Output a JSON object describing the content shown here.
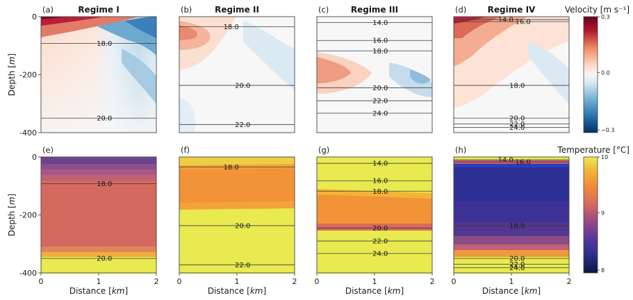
{
  "chart_data": {
    "type": "heatmap",
    "figure": {
      "titles": [
        "Regime I",
        "Regime II",
        "Regime III",
        "Regime IV"
      ],
      "xlabel": "Distance [km]",
      "ylabel": "Depth [m]",
      "xticks": [
        "0",
        "1",
        "2"
      ],
      "yticks": [
        "0",
        "-200",
        "-400"
      ],
      "xlim": [
        0,
        2
      ],
      "ylim": [
        -400,
        0
      ]
    },
    "colorbars": [
      {
        "name": "velocity",
        "label": "Velocity [m s⁻¹]",
        "min": -0.3,
        "max": 0.3,
        "ticks": [
          "0.3",
          "0.0",
          "−0.3"
        ],
        "colormap": "RdBu_r"
      },
      {
        "name": "temperature",
        "label": "Temperature [°C]",
        "min": 8,
        "max": 10,
        "ticks": [
          "10",
          "9",
          "8"
        ],
        "colormap": "CMRmap"
      }
    ],
    "panels": [
      {
        "id": "(a)",
        "row": "velocity",
        "regime": "Regime I",
        "contours": [
          {
            "label": "18.0",
            "depth": -92,
            "label_x": 1.1
          },
          {
            "label": "20.0",
            "depth": -350,
            "label_x": 1.1
          }
        ]
      },
      {
        "id": "(b)",
        "row": "velocity",
        "regime": "Regime II",
        "contours": [
          {
            "label": "18.0",
            "depth": -35,
            "label_x": 0.9
          },
          {
            "label": "20.0",
            "depth": -237,
            "label_x": 1.1
          },
          {
            "label": "22.0",
            "depth": -372,
            "label_x": 1.1
          }
        ]
      },
      {
        "id": "(c)",
        "row": "velocity",
        "regime": "Regime III",
        "contours": [
          {
            "label": "14.0",
            "depth": -20,
            "label_x": 1.1
          },
          {
            "label": "16.0",
            "depth": -82,
            "label_x": 1.1
          },
          {
            "label": "18.0",
            "depth": -118,
            "label_x": 1.1
          },
          {
            "label": "20.0",
            "depth": -245,
            "label_x": 1.1
          },
          {
            "label": "22.0",
            "depth": -290,
            "label_x": 1.1
          },
          {
            "label": "24.0",
            "depth": -333,
            "label_x": 1.1
          }
        ]
      },
      {
        "id": "(d)",
        "row": "velocity",
        "regime": "Regime IV",
        "contours": [
          {
            "label": "14.0",
            "depth": -10,
            "label_x": 0.9
          },
          {
            "label": "16.0",
            "depth": -17,
            "label_x": 1.2
          },
          {
            "label": "18.0",
            "depth": -237,
            "label_x": 1.1
          },
          {
            "label": "20.0",
            "depth": -350,
            "label_x": 1.1
          },
          {
            "label": "22.0",
            "depth": -370,
            "label_x": 1.1
          },
          {
            "label": "24.0",
            "depth": -382,
            "label_x": 1.1
          }
        ]
      },
      {
        "id": "(e)",
        "row": "temperature",
        "regime": "Regime I",
        "contours": [
          {
            "label": "18.0",
            "depth": -92,
            "label_x": 1.1
          },
          {
            "label": "20.0",
            "depth": -350,
            "label_x": 1.1
          }
        ]
      },
      {
        "id": "(f)",
        "row": "temperature",
        "regime": "Regime II",
        "contours": [
          {
            "label": "18.0",
            "depth": -35,
            "label_x": 0.9
          },
          {
            "label": "20.0",
            "depth": -237,
            "label_x": 1.1
          },
          {
            "label": "22.0",
            "depth": -372,
            "label_x": 1.1
          }
        ]
      },
      {
        "id": "(g)",
        "row": "temperature",
        "regime": "Regime III",
        "contours": [
          {
            "label": "14.0",
            "depth": -22,
            "label_x": 1.1
          },
          {
            "label": "16.0",
            "depth": -82,
            "label_x": 1.1
          },
          {
            "label": "18.0",
            "depth": -118,
            "label_x": 1.1
          },
          {
            "label": "20.0",
            "depth": -245,
            "label_x": 1.1
          },
          {
            "label": "22.0",
            "depth": -290,
            "label_x": 1.1
          },
          {
            "label": "24.0",
            "depth": -333,
            "label_x": 1.1
          }
        ]
      },
      {
        "id": "(h)",
        "row": "temperature",
        "regime": "Regime IV",
        "contours": [
          {
            "label": "14.0",
            "depth": -10,
            "label_x": 0.9
          },
          {
            "label": "16.0",
            "depth": -17,
            "label_x": 1.2
          },
          {
            "label": "18.0",
            "depth": -237,
            "label_x": 1.1
          },
          {
            "label": "20.0",
            "depth": -350,
            "label_x": 1.1
          },
          {
            "label": "22.0",
            "depth": -370,
            "label_x": 1.1
          },
          {
            "label": "24.0",
            "depth": -382,
            "label_x": 1.1
          }
        ]
      }
    ]
  }
}
